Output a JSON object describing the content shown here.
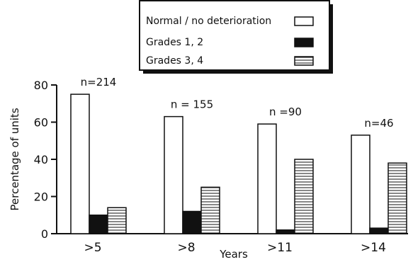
{
  "chart_data": {
    "type": "bar",
    "categories": [
      ">5",
      ">8",
      ">11",
      ">14"
    ],
    "annotations": [
      "n=214",
      "n = 155",
      "n =90",
      "n=46"
    ],
    "series": [
      {
        "name": "Normal / no deterioration",
        "values": [
          75,
          63,
          59,
          53
        ],
        "color": "#ffffff",
        "pattern": "none"
      },
      {
        "name": "Grades 1, 2",
        "values": [
          10,
          12,
          2,
          3
        ],
        "color": "#111111",
        "pattern": "solid"
      },
      {
        "name": "Grades 3, 4",
        "values": [
          14,
          25,
          40,
          38
        ],
        "color": "#ffffff",
        "pattern": "horizontal-lines"
      }
    ],
    "xlabel": "Years",
    "ylabel": "Percentage of units",
    "ylim": [
      0,
      80
    ],
    "yticks": [
      0,
      20,
      40,
      60,
      80
    ],
    "grid": false,
    "legend_position": "top-center"
  }
}
